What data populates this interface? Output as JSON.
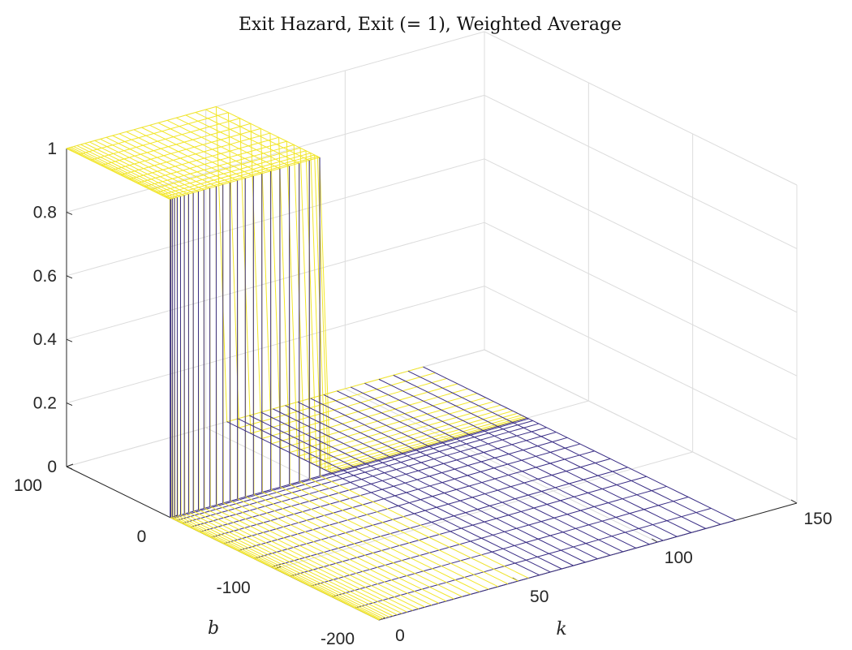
{
  "chart_data": {
    "type": "surface-mesh",
    "title": "Exit Hazard, Exit (= 1), Weighted Average",
    "xlabel": "k",
    "ylabel": "b",
    "zlabel": "",
    "xlim": [
      0,
      150
    ],
    "ylim": [
      -200,
      100
    ],
    "zlim": [
      0,
      1
    ],
    "xticks": [
      "0",
      "50",
      "100",
      "150"
    ],
    "yticks": [
      "-200",
      "-100",
      "0",
      "100"
    ],
    "zticks": [
      "0",
      "0.2",
      "0.4",
      "0.6",
      "0.8",
      "1"
    ],
    "grid": true,
    "colormap": [
      "#3b2f86",
      "#2a9fd0",
      "#33c9b0",
      "#f2e629",
      "#fffb1f"
    ],
    "surface": {
      "description_values": {
        "k_range": [
          0,
          128
        ],
        "b_range": [
          -200,
          100
        ],
        "hazard_when_b_positive_and_k_small": 1,
        "hazard_otherwise": 0,
        "k_cutoff": 55
      }
    }
  }
}
